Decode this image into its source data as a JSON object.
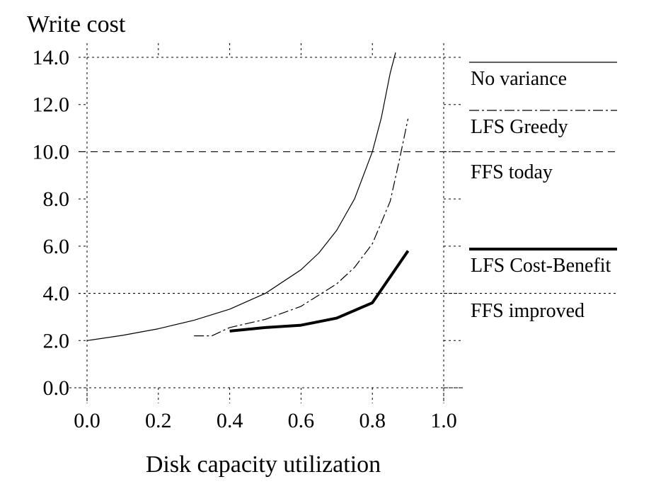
{
  "chart_data": {
    "type": "line",
    "ylabel": "Write cost",
    "xlabel": "Disk capacity utilization",
    "xlim": [
      0.0,
      1.0
    ],
    "ylim": [
      0.0,
      14.0
    ],
    "x_ticks": [
      "0.0",
      "0.2",
      "0.4",
      "0.6",
      "0.8",
      "1.0"
    ],
    "y_ticks": [
      "0.0",
      "2.0",
      "4.0",
      "6.0",
      "8.0",
      "10.0",
      "12.0",
      "14.0"
    ],
    "x_tick_values": [
      0.0,
      0.2,
      0.4,
      0.6,
      0.8,
      1.0
    ],
    "y_tick_values": [
      0,
      2,
      4,
      6,
      8,
      10,
      12,
      14
    ],
    "grid": true,
    "legend_position": "right",
    "series": [
      {
        "name": "No variance",
        "style": "solid-thin",
        "color": "#000000",
        "x": [
          0.0,
          0.1,
          0.2,
          0.3,
          0.4,
          0.5,
          0.6,
          0.65,
          0.7,
          0.75,
          0.8,
          0.825,
          0.85,
          0.865
        ],
        "y": [
          2.0,
          2.22,
          2.5,
          2.86,
          3.33,
          4.0,
          5.0,
          5.71,
          6.67,
          8.0,
          10.0,
          11.43,
          13.33,
          14.2
        ]
      },
      {
        "name": "LFS Greedy",
        "style": "dashdot-thin",
        "color": "#000000",
        "x": [
          0.3,
          0.35,
          0.4,
          0.5,
          0.6,
          0.7,
          0.75,
          0.8,
          0.85,
          0.875,
          0.9
        ],
        "y": [
          2.2,
          2.2,
          2.55,
          2.9,
          3.45,
          4.4,
          5.1,
          6.1,
          7.9,
          9.6,
          11.4
        ]
      },
      {
        "name": "LFS Cost-Benefit",
        "style": "solid-thick",
        "color": "#000000",
        "x": [
          0.4,
          0.5,
          0.6,
          0.7,
          0.8,
          0.9
        ],
        "y": [
          2.4,
          2.55,
          2.65,
          2.95,
          3.6,
          5.8
        ]
      }
    ],
    "reference_lines": [
      {
        "name": "FFS today",
        "y": 10.0,
        "style": "dashed"
      },
      {
        "name": "FFS improved",
        "y": 4.0,
        "style": "dotted"
      }
    ],
    "legend": [
      {
        "label": "No variance",
        "style": "solid-thin"
      },
      {
        "label": "LFS Greedy",
        "style": "dashdot-thin"
      },
      {
        "label": "FFS today",
        "style": "dashed"
      },
      {
        "label": "LFS Cost-Benefit",
        "style": "solid-thick"
      },
      {
        "label": "FFS improved",
        "style": "dotted"
      }
    ]
  }
}
